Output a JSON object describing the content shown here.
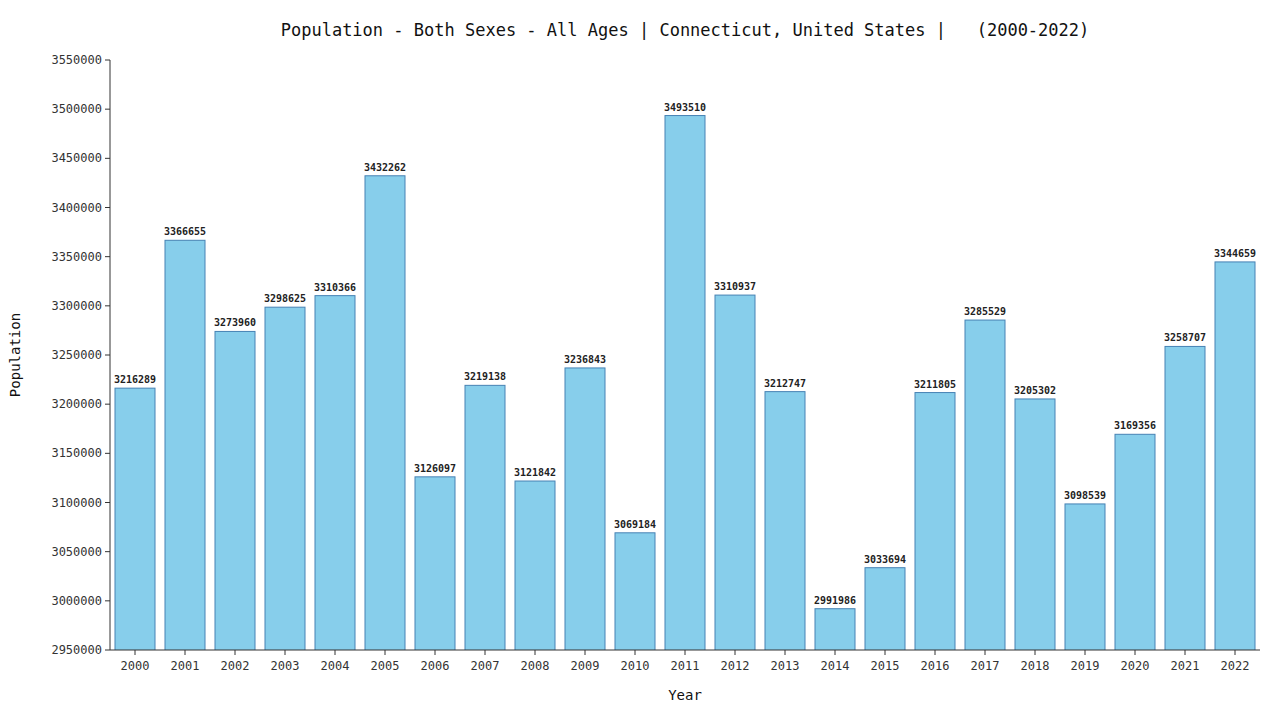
{
  "chart_data": {
    "type": "bar",
    "title": "Population - Both Sexes - All Ages | Connecticut, United States |   (2000-2022)",
    "x_label": "Year",
    "y_label": "Population",
    "categories": [
      "2000",
      "2001",
      "2002",
      "2003",
      "2004",
      "2005",
      "2006",
      "2007",
      "2008",
      "2009",
      "2010",
      "2011",
      "2012",
      "2013",
      "2014",
      "2015",
      "2016",
      "2017",
      "2018",
      "2019",
      "2020",
      "2021",
      "2022"
    ],
    "values": [
      3216289,
      3366655,
      3273960,
      3298625,
      3310366,
      3432262,
      3126097,
      3219138,
      3121842,
      3236843,
      3069184,
      3493510,
      3310937,
      3212747,
      2991986,
      3033694,
      3211805,
      3285529,
      3205302,
      3098539,
      3169356,
      3258707,
      3344659
    ],
    "color": "#87CEEB",
    "ylim": [
      2950000,
      3550000
    ],
    "yticks": [
      2950000,
      3000000,
      3050000,
      3100000,
      3150000,
      3200000,
      3250000,
      3300000,
      3350000,
      3400000,
      3450000,
      3500000,
      3550000
    ],
    "grid": false,
    "data_labels": true
  }
}
